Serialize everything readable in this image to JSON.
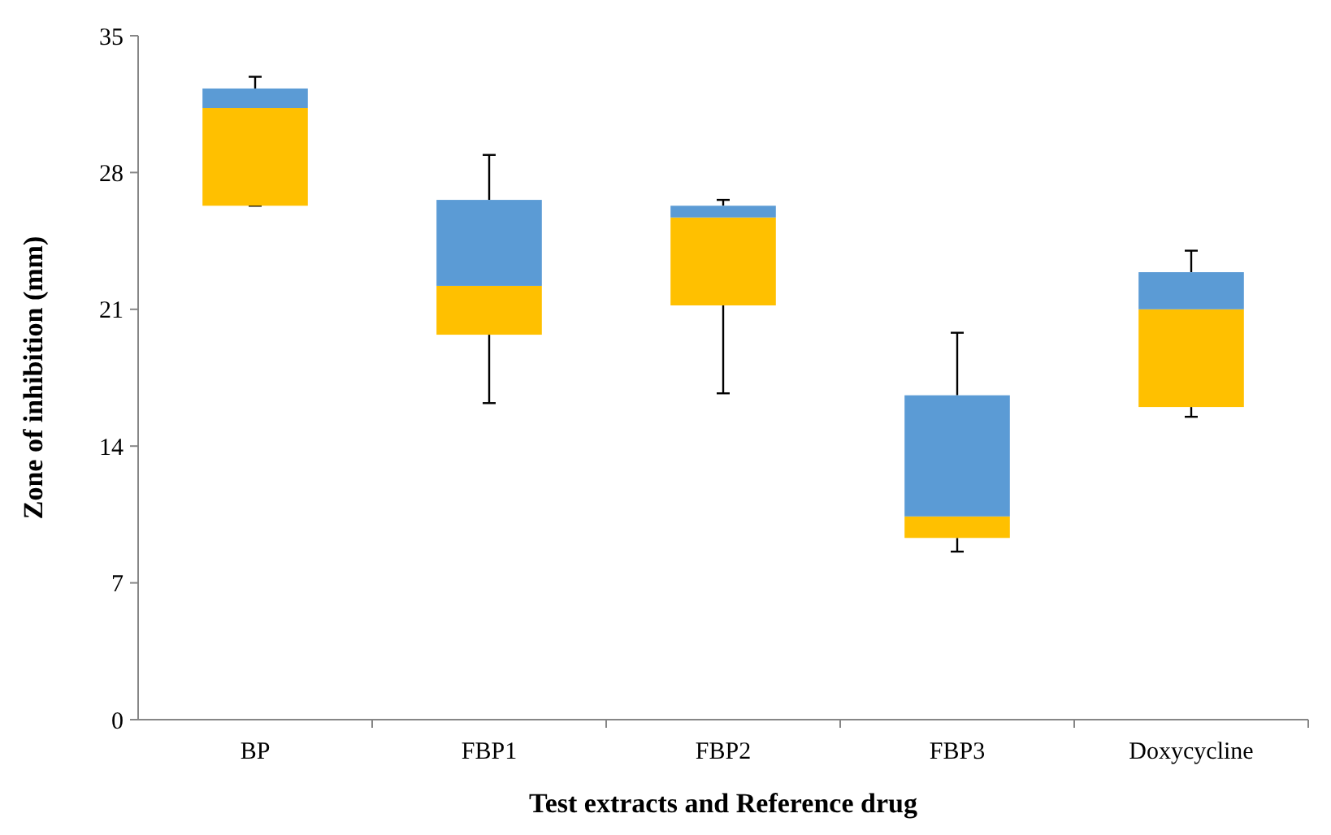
{
  "chart_data": {
    "type": "box",
    "xlabel": "Test extracts and Reference drug",
    "ylabel": "Zone of inhibition (mm)",
    "categories": [
      "BP",
      "FBP1",
      "FBP2",
      "FBP3",
      "Doxycycline"
    ],
    "color": "#5b9bd5",
    "ylim": [
      0,
      35
    ],
    "yticks": [
      0,
      7,
      14,
      21,
      28,
      35
    ],
    "grid": false,
    "series": [
      {
        "color": "#ffc000",
        "boxes": [
          {
            "low": 26.3,
            "q1": 26.3,
            "median": 31.3,
            "q3": 32.3,
            "high": 32.9
          },
          {
            "low": 16.2,
            "q1": 19.7,
            "median": 22.2,
            "q3": 26.6,
            "high": 28.9
          },
          {
            "low": 16.7,
            "q1": 21.2,
            "median": 25.7,
            "q3": 26.3,
            "high": 26.6
          },
          {
            "low": 8.6,
            "q1": 9.3,
            "median": 10.4,
            "q3": 16.6,
            "high": 19.8
          },
          {
            "low": 15.5,
            "q1": 16.0,
            "median": 21.0,
            "q3": 22.9,
            "high": 24.0
          }
        ]
      }
    ]
  }
}
